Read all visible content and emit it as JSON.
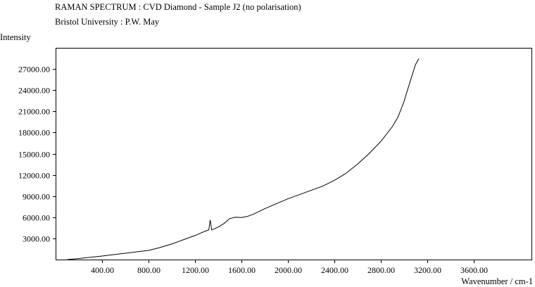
{
  "header": {
    "title": "RAMAN SPECTRUM : CVD Diamond - Sample J2 (no polarisation)",
    "subtitle": "Bristol University : P.W. May"
  },
  "chart_data": {
    "type": "line",
    "title": "RAMAN SPECTRUM : CVD Diamond - Sample J2 (no polarisation)",
    "subtitle": "Bristol University : P.W. May",
    "xlabel": "Wavenumber / cm-1",
    "ylabel": "Intensity",
    "xlim": [
      0,
      4100
    ],
    "ylim": [
      0,
      30000
    ],
    "x_ticks": [
      400,
      800,
      1200,
      1600,
      2000,
      2400,
      2800,
      3200,
      3600
    ],
    "x_tick_labels": [
      "400.00",
      "800.00",
      "1200.00",
      "1600.00",
      "2000.00",
      "2400.00",
      "2800.00",
      "3200.00",
      "3600.00"
    ],
    "y_ticks": [
      3000,
      6000,
      9000,
      12000,
      15000,
      18000,
      21000,
      24000,
      27000
    ],
    "y_tick_labels": [
      "3000.00",
      "6000.00",
      "9000.00",
      "12000.00",
      "15000.00",
      "18000.00",
      "21000.00",
      "24000.00",
      "27000.00"
    ],
    "grid": false,
    "legend": "none",
    "series": [
      {
        "color": "#000000",
        "x": [
          100,
          200,
          400,
          600,
          800,
          900,
          1000,
          1100,
          1200,
          1300,
          1320,
          1332,
          1345,
          1360,
          1400,
          1450,
          1500,
          1550,
          1600,
          1650,
          1700,
          1800,
          1900,
          2000,
          2100,
          2200,
          2300,
          2400,
          2500,
          2600,
          2700,
          2800,
          2900,
          2950,
          3000,
          3050,
          3100,
          3130
        ],
        "y": [
          0,
          150,
          500,
          900,
          1300,
          1700,
          2200,
          2800,
          3400,
          4100,
          4200,
          5600,
          4200,
          4300,
          4600,
          5100,
          5800,
          6000,
          5950,
          6100,
          6400,
          7200,
          7900,
          8600,
          9200,
          9800,
          10400,
          11200,
          12200,
          13500,
          15000,
          16700,
          18800,
          20200,
          22300,
          25000,
          27600,
          28500
        ]
      }
    ]
  }
}
